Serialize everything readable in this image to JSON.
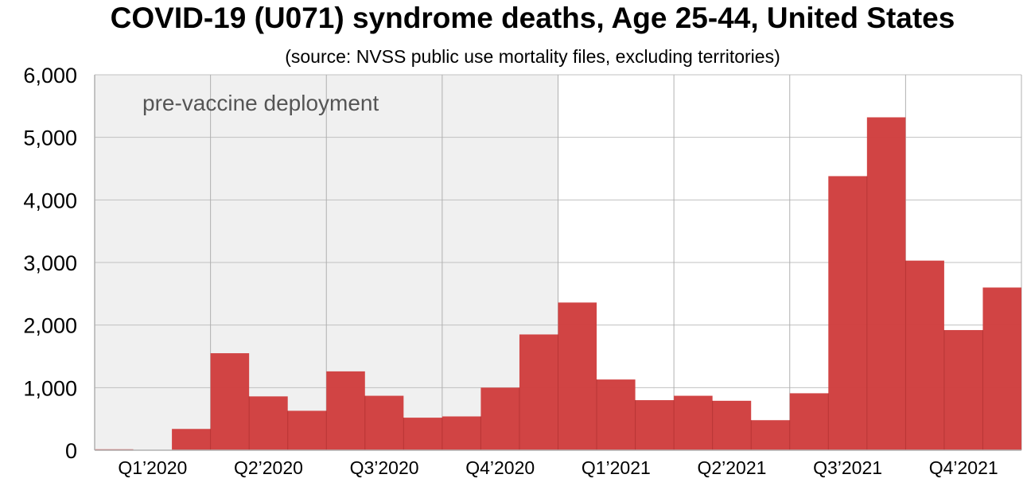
{
  "chart_data": {
    "type": "bar",
    "title": "COVID-19 (U071) syndrome deaths, Age 25-44, United States",
    "subtitle": "(source: NVSS public use mortality files, excluding territories)",
    "months": [
      "Jan 2020",
      "Feb 2020",
      "Mar 2020",
      "Apr 2020",
      "May 2020",
      "Jun 2020",
      "Jul 2020",
      "Aug 2020",
      "Sep 2020",
      "Oct 2020",
      "Nov 2020",
      "Dec 2020",
      "Jan 2021",
      "Feb 2021",
      "Mar 2021",
      "Apr 2021",
      "May 2021",
      "Jun 2021",
      "Jul 2021",
      "Aug 2021",
      "Sep 2021",
      "Oct 2021",
      "Nov 2021",
      "Dec 2021"
    ],
    "values": [
      15,
      5,
      340,
      1550,
      860,
      630,
      1260,
      870,
      520,
      540,
      1000,
      1850,
      2360,
      1130,
      800,
      870,
      790,
      480,
      910,
      4380,
      5320,
      3030,
      1920,
      2600
    ],
    "x_tick_labels": [
      "Q1’2020",
      "Q2’2020",
      "Q3’2020",
      "Q4’2020",
      "Q1’2021",
      "Q2’2021",
      "Q3’2021",
      "Q4’2021"
    ],
    "y_tick_labels": [
      "0",
      "1,000",
      "2,000",
      "3,000",
      "4,000",
      "5,000",
      "6,000"
    ],
    "ylim": [
      0,
      6000
    ],
    "ytick_step": 1000,
    "grid": true,
    "bar_color": "#d04040",
    "shaded_region": {
      "label": "pre-vaccine deployment",
      "start_month_index": 0,
      "end_month_index": 12,
      "color": "#f0f0f0"
    }
  }
}
